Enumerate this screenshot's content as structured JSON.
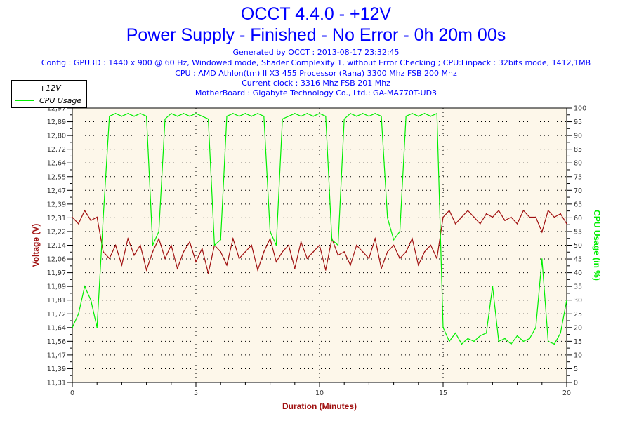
{
  "header": {
    "title": "OCCT 4.4.0 - +12V",
    "subtitle": "Power Supply - Finished - No Error - 0h 20m 00s",
    "generated": "Generated by OCCT : 2013-08-17 23:32:45",
    "config": "Config : GPU3D : 1440 x 900 @ 60 Hz, Windowed mode, Shader Complexity 1, without Error Checking ; CPU:Linpack : 32bits mode, 1412,1MB",
    "cpu": "CPU : AMD Athlon(tm) II X3 455 Processor (Rana) 3300 Mhz FSB 200 Mhz",
    "clock": "Current clock : 3316 Mhz FSB 201 Mhz",
    "motherboard": "MotherBoard : Gigabyte Technology Co., Ltd.: GA-MA770T-UD3"
  },
  "chart_data": {
    "type": "line",
    "xlabel": "Duration (Minutes)",
    "ylabel": "Voltage (V)",
    "y2label": "CPU Usage (in %)",
    "xlim": [
      0,
      20
    ],
    "ylim": [
      11.31,
      12.97
    ],
    "y2lim": [
      0,
      100
    ],
    "x_ticks": [
      "0",
      "5",
      "10",
      "15",
      "20"
    ],
    "y_ticks": [
      "12,97",
      "12,89",
      "12,80",
      "12,72",
      "12,64",
      "12,55",
      "12,47",
      "12,39",
      "12,31",
      "12,22",
      "12,14",
      "12,06",
      "11,97",
      "11,89",
      "11,81",
      "11,72",
      "11,64",
      "11,56",
      "11,47",
      "11,39",
      "11,31"
    ],
    "y2_ticks": [
      "100",
      "95",
      "90",
      "85",
      "80",
      "75",
      "70",
      "65",
      "60",
      "55",
      "50",
      "45",
      "40",
      "35",
      "30",
      "25",
      "20",
      "15",
      "10",
      "5",
      "0"
    ],
    "grid": true,
    "legend": "top-left",
    "colors": {
      "voltage": "#a01010",
      "cpu": "#00ee00",
      "plot_bg": "#fdf7ea"
    },
    "x": [
      0,
      0.25,
      0.5,
      0.75,
      1,
      1.25,
      1.5,
      1.75,
      2,
      2.25,
      2.5,
      2.75,
      3,
      3.25,
      3.5,
      3.75,
      4,
      4.25,
      4.5,
      4.75,
      5,
      5.25,
      5.5,
      5.75,
      6,
      6.25,
      6.5,
      6.75,
      7,
      7.25,
      7.5,
      7.75,
      8,
      8.25,
      8.5,
      8.75,
      9,
      9.25,
      9.5,
      9.75,
      10,
      10.25,
      10.5,
      10.75,
      11,
      11.25,
      11.5,
      11.75,
      12,
      12.25,
      12.5,
      12.75,
      13,
      13.25,
      13.5,
      13.75,
      14,
      14.25,
      14.5,
      14.75,
      15,
      15.25,
      15.5,
      15.75,
      16,
      16.25,
      16.5,
      16.75,
      17,
      17.25,
      17.5,
      17.75,
      18,
      18.25,
      18.5,
      18.75,
      19,
      19.25,
      19.5,
      19.75,
      20
    ],
    "series": [
      {
        "name": "+12V",
        "axis": "left",
        "values": [
          12.31,
          12.27,
          12.35,
          12.29,
          12.31,
          12.1,
          12.06,
          12.14,
          12.02,
          12.18,
          12.08,
          12.14,
          11.99,
          12.1,
          12.18,
          12.06,
          12.14,
          12.0,
          12.1,
          12.16,
          12.04,
          12.12,
          11.97,
          12.14,
          12.1,
          12.02,
          12.18,
          12.06,
          12.1,
          12.14,
          11.99,
          12.1,
          12.18,
          12.04,
          12.1,
          12.14,
          12.0,
          12.16,
          12.06,
          12.1,
          12.14,
          11.99,
          12.18,
          12.08,
          12.1,
          12.02,
          12.14,
          12.1,
          12.06,
          12.18,
          12.0,
          12.1,
          12.14,
          12.06,
          12.1,
          12.18,
          12.02,
          12.1,
          12.14,
          12.06,
          12.31,
          12.35,
          12.27,
          12.31,
          12.35,
          12.31,
          12.27,
          12.33,
          12.31,
          12.35,
          12.29,
          12.31,
          12.27,
          12.35,
          12.31,
          12.31,
          12.22,
          12.35,
          12.31,
          12.33,
          12.27
        ]
      },
      {
        "name": "CPU Usage",
        "axis": "right",
        "values": [
          20,
          25,
          35,
          30,
          20,
          60,
          97,
          98,
          97,
          98,
          97,
          98,
          97,
          50,
          55,
          96,
          98,
          97,
          98,
          97,
          98,
          97,
          96,
          50,
          52,
          97,
          98,
          97,
          98,
          97,
          98,
          97,
          55,
          50,
          96,
          97,
          98,
          97,
          98,
          97,
          98,
          97,
          52,
          50,
          96,
          98,
          97,
          98,
          97,
          98,
          97,
          60,
          52,
          55,
          97,
          98,
          97,
          98,
          97,
          98,
          20,
          15,
          18,
          14,
          16,
          15,
          17,
          18,
          35,
          15,
          16,
          14,
          17,
          15,
          16,
          20,
          45,
          15,
          14,
          18,
          30
        ]
      }
    ]
  }
}
